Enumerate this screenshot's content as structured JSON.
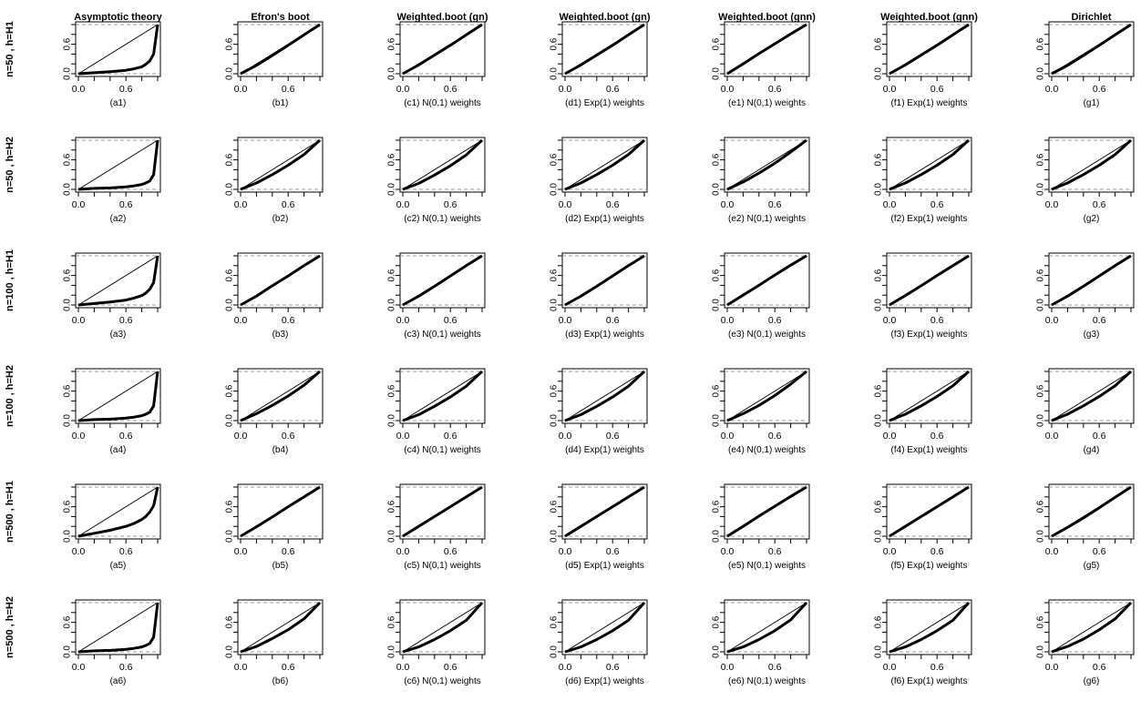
{
  "chart_data": {
    "type": "line",
    "layout": {
      "rows": 6,
      "cols": 7
    },
    "columns": [
      "Asymptotic theory",
      "Efron's boot",
      "Weighted.boot (gn)",
      "Weighted.boot (gn)",
      "Weighted.boot (gnn)",
      "Weighted.boot (gnn)",
      "Dirichlet"
    ],
    "rows": [
      "n=50 , h=H1",
      "n=50 , h=H2",
      "n=100 , h=H1",
      "n=100 , h=H2",
      "n=500 , h=H1",
      "n=500 , h=H2"
    ],
    "captions": [
      [
        "(a1)",
        "(b1)",
        "(c1) N(0,1) weights",
        "(d1) Exp(1) weights",
        "(e1) N(0,1) weights",
        "(f1) Exp(1) weights",
        "(g1)"
      ],
      [
        "(a2)",
        "(b2)",
        "(c2) N(0,1) weights",
        "(d2) Exp(1) weights",
        "(e2) N(0,1) weights",
        "(f2) Exp(1) weights",
        "(g2)"
      ],
      [
        "(a3)",
        "(b3)",
        "(c3) N(0,1) weights",
        "(d3) Exp(1) weights",
        "(e3) N(0,1) weights",
        "(f3) Exp(1) weights",
        "(g3)"
      ],
      [
        "(a4)",
        "(b4)",
        "(c4) N(0,1) weights",
        "(d4) Exp(1) weights",
        "(e4) N(0,1) weights",
        "(f4) Exp(1) weights",
        "(g4)"
      ],
      [
        "(a5)",
        "(b5)",
        "(c5) N(0,1) weights",
        "(d5) Exp(1) weights",
        "(e5) N(0,1) weights",
        "(f5) Exp(1) weights",
        "(g5)"
      ],
      [
        "(a6)",
        "(b6)",
        "(c6) N(0,1) weights",
        "(d6) Exp(1) weights",
        "(e6) N(0,1) weights",
        "(f6) Exp(1) weights",
        "(g6)"
      ]
    ],
    "xticks": [
      "0.0",
      "0.6"
    ],
    "yticks": [
      "0.0",
      "0.6"
    ],
    "xlim": [
      0,
      1
    ],
    "ylim": [
      0,
      1
    ],
    "reference_line": "y = x",
    "reference_hlines": [
      0,
      1
    ],
    "panels": [
      [
        {
          "x": [
            0,
            0.2,
            0.4,
            0.6,
            0.7,
            0.8,
            0.85,
            0.9,
            0.95,
            1
          ],
          "y": [
            0,
            0.02,
            0.04,
            0.07,
            0.1,
            0.14,
            0.19,
            0.26,
            0.4,
            1
          ]
        },
        {
          "x": [
            0,
            0.2,
            0.4,
            0.6,
            0.8,
            1
          ],
          "y": [
            0,
            0.17,
            0.37,
            0.58,
            0.79,
            1
          ]
        },
        {
          "x": [
            0,
            0.2,
            0.4,
            0.6,
            0.8,
            1
          ],
          "y": [
            0,
            0.18,
            0.38,
            0.58,
            0.79,
            1
          ]
        },
        {
          "x": [
            0,
            0.2,
            0.4,
            0.6,
            0.8,
            1
          ],
          "y": [
            0,
            0.18,
            0.38,
            0.58,
            0.79,
            1
          ]
        },
        {
          "x": [
            0,
            0.2,
            0.4,
            0.6,
            0.8,
            1
          ],
          "y": [
            0,
            0.2,
            0.41,
            0.61,
            0.81,
            1
          ]
        },
        {
          "x": [
            0,
            0.2,
            0.4,
            0.6,
            0.8,
            1
          ],
          "y": [
            0,
            0.18,
            0.38,
            0.58,
            0.79,
            1
          ]
        },
        {
          "x": [
            0,
            0.2,
            0.4,
            0.6,
            0.8,
            1
          ],
          "y": [
            0,
            0.17,
            0.37,
            0.58,
            0.79,
            1
          ]
        }
      ],
      [
        {
          "x": [
            0,
            0.2,
            0.4,
            0.6,
            0.7,
            0.8,
            0.85,
            0.9,
            0.95,
            1
          ],
          "y": [
            0,
            0.02,
            0.03,
            0.05,
            0.07,
            0.1,
            0.13,
            0.17,
            0.3,
            1
          ]
        },
        {
          "x": [
            0,
            0.2,
            0.4,
            0.6,
            0.8,
            1
          ],
          "y": [
            0,
            0.13,
            0.3,
            0.49,
            0.71,
            1
          ]
        },
        {
          "x": [
            0,
            0.2,
            0.4,
            0.6,
            0.8,
            1
          ],
          "y": [
            0,
            0.12,
            0.29,
            0.48,
            0.7,
            1
          ]
        },
        {
          "x": [
            0,
            0.2,
            0.4,
            0.6,
            0.8,
            1
          ],
          "y": [
            0,
            0.13,
            0.3,
            0.49,
            0.71,
            1
          ]
        },
        {
          "x": [
            0,
            0.2,
            0.4,
            0.6,
            0.8,
            1
          ],
          "y": [
            0,
            0.15,
            0.33,
            0.53,
            0.76,
            1
          ]
        },
        {
          "x": [
            0,
            0.2,
            0.4,
            0.6,
            0.8,
            1
          ],
          "y": [
            0,
            0.13,
            0.3,
            0.49,
            0.71,
            1
          ]
        },
        {
          "x": [
            0,
            0.2,
            0.4,
            0.6,
            0.8,
            1
          ],
          "y": [
            0,
            0.13,
            0.3,
            0.49,
            0.71,
            1
          ]
        }
      ],
      [
        {
          "x": [
            0,
            0.2,
            0.4,
            0.6,
            0.7,
            0.8,
            0.85,
            0.9,
            0.95,
            1
          ],
          "y": [
            0,
            0.03,
            0.06,
            0.1,
            0.14,
            0.19,
            0.24,
            0.32,
            0.46,
            1
          ]
        },
        {
          "x": [
            0,
            0.2,
            0.4,
            0.6,
            0.8,
            1
          ],
          "y": [
            0,
            0.18,
            0.39,
            0.59,
            0.8,
            1
          ]
        },
        {
          "x": [
            0,
            0.2,
            0.4,
            0.6,
            0.8,
            1
          ],
          "y": [
            0,
            0.18,
            0.38,
            0.59,
            0.8,
            1
          ]
        },
        {
          "x": [
            0,
            0.2,
            0.4,
            0.6,
            0.8,
            1
          ],
          "y": [
            0,
            0.18,
            0.38,
            0.59,
            0.8,
            1
          ]
        },
        {
          "x": [
            0,
            0.2,
            0.4,
            0.6,
            0.8,
            1
          ],
          "y": [
            0,
            0.2,
            0.4,
            0.61,
            0.81,
            1
          ]
        },
        {
          "x": [
            0,
            0.2,
            0.4,
            0.6,
            0.8,
            1
          ],
          "y": [
            0,
            0.19,
            0.39,
            0.6,
            0.8,
            1
          ]
        },
        {
          "x": [
            0,
            0.2,
            0.4,
            0.6,
            0.8,
            1
          ],
          "y": [
            0,
            0.18,
            0.38,
            0.59,
            0.8,
            1
          ]
        }
      ],
      [
        {
          "x": [
            0,
            0.2,
            0.4,
            0.6,
            0.7,
            0.8,
            0.85,
            0.9,
            0.95,
            1
          ],
          "y": [
            0,
            0.02,
            0.03,
            0.05,
            0.07,
            0.1,
            0.13,
            0.17,
            0.3,
            1
          ]
        },
        {
          "x": [
            0,
            0.2,
            0.4,
            0.6,
            0.8,
            1
          ],
          "y": [
            0,
            0.14,
            0.31,
            0.5,
            0.72,
            1
          ]
        },
        {
          "x": [
            0,
            0.2,
            0.4,
            0.6,
            0.8,
            1
          ],
          "y": [
            0,
            0.12,
            0.29,
            0.48,
            0.7,
            1
          ]
        },
        {
          "x": [
            0,
            0.2,
            0.4,
            0.6,
            0.8,
            1
          ],
          "y": [
            0,
            0.12,
            0.29,
            0.48,
            0.7,
            1
          ]
        },
        {
          "x": [
            0,
            0.2,
            0.4,
            0.6,
            0.8,
            1
          ],
          "y": [
            0,
            0.14,
            0.31,
            0.51,
            0.74,
            1
          ]
        },
        {
          "x": [
            0,
            0.2,
            0.4,
            0.6,
            0.8,
            1
          ],
          "y": [
            0,
            0.13,
            0.3,
            0.49,
            0.71,
            1
          ]
        },
        {
          "x": [
            0,
            0.2,
            0.4,
            0.6,
            0.8,
            1
          ],
          "y": [
            0,
            0.13,
            0.3,
            0.49,
            0.71,
            1
          ]
        }
      ],
      [
        {
          "x": [
            0,
            0.2,
            0.4,
            0.6,
            0.7,
            0.8,
            0.85,
            0.9,
            0.95,
            1
          ],
          "y": [
            0,
            0.06,
            0.12,
            0.2,
            0.26,
            0.34,
            0.4,
            0.49,
            0.62,
            1
          ]
        },
        {
          "x": [
            0,
            0.2,
            0.4,
            0.6,
            0.8,
            1
          ],
          "y": [
            0,
            0.19,
            0.39,
            0.6,
            0.8,
            1
          ]
        },
        {
          "x": [
            0,
            0.2,
            0.4,
            0.6,
            0.8,
            1
          ],
          "y": [
            0,
            0.2,
            0.4,
            0.6,
            0.8,
            1
          ]
        },
        {
          "x": [
            0,
            0.2,
            0.4,
            0.6,
            0.8,
            1
          ],
          "y": [
            0,
            0.2,
            0.4,
            0.6,
            0.8,
            1
          ]
        },
        {
          "x": [
            0,
            0.2,
            0.4,
            0.6,
            0.8,
            1
          ],
          "y": [
            0,
            0.2,
            0.41,
            0.61,
            0.81,
            1
          ]
        },
        {
          "x": [
            0,
            0.2,
            0.4,
            0.6,
            0.8,
            1
          ],
          "y": [
            0,
            0.2,
            0.4,
            0.6,
            0.8,
            1
          ]
        },
        {
          "x": [
            0,
            0.2,
            0.4,
            0.6,
            0.8,
            1
          ],
          "y": [
            0,
            0.18,
            0.37,
            0.58,
            0.79,
            1
          ]
        }
      ],
      [
        {
          "x": [
            0,
            0.2,
            0.4,
            0.6,
            0.7,
            0.8,
            0.85,
            0.9,
            0.95,
            1
          ],
          "y": [
            0,
            0.02,
            0.03,
            0.05,
            0.07,
            0.1,
            0.13,
            0.17,
            0.3,
            1
          ]
        },
        {
          "x": [
            0,
            0.2,
            0.4,
            0.6,
            0.8,
            1
          ],
          "y": [
            0,
            0.11,
            0.27,
            0.45,
            0.67,
            1
          ]
        },
        {
          "x": [
            0,
            0.2,
            0.4,
            0.6,
            0.8,
            1
          ],
          "y": [
            0,
            0.1,
            0.25,
            0.43,
            0.64,
            1
          ]
        },
        {
          "x": [
            0,
            0.2,
            0.4,
            0.6,
            0.8,
            1
          ],
          "y": [
            0,
            0.1,
            0.25,
            0.43,
            0.64,
            1
          ]
        },
        {
          "x": [
            0,
            0.2,
            0.4,
            0.6,
            0.8,
            1
          ],
          "y": [
            0,
            0.1,
            0.25,
            0.43,
            0.65,
            1
          ]
        },
        {
          "x": [
            0,
            0.2,
            0.4,
            0.6,
            0.8,
            1
          ],
          "y": [
            0,
            0.1,
            0.25,
            0.43,
            0.64,
            1
          ]
        },
        {
          "x": [
            0,
            0.2,
            0.4,
            0.6,
            0.8,
            1
          ],
          "y": [
            0,
            0.11,
            0.26,
            0.45,
            0.67,
            1
          ]
        }
      ]
    ]
  }
}
